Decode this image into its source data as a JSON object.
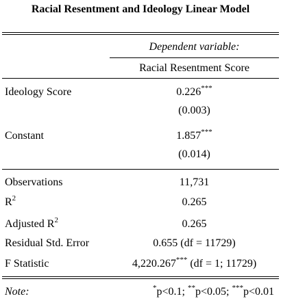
{
  "title": "Racial Resentment and Ideology Linear Model",
  "header": {
    "dependent_variable_label": "Dependent variable:",
    "dependent_variable": "Racial Resentment Score"
  },
  "coefficients": [
    {
      "name": "Ideology Score",
      "estimate": "0.226",
      "stars": "***",
      "se": "(0.003)"
    },
    {
      "name": "Constant",
      "estimate": "1.857",
      "stars": "***",
      "se": "(0.014)"
    }
  ],
  "stats": {
    "observations": {
      "label": "Observations",
      "value": "11,731"
    },
    "r2": {
      "label_base": "R",
      "label_sup": "2",
      "value": "0.265"
    },
    "adj_r2": {
      "label_base": "Adjusted R",
      "label_sup": "2",
      "value": "0.265"
    },
    "rse": {
      "label": "Residual Std. Error",
      "value": "0.655 (df = 11729)"
    },
    "f": {
      "label": "F Statistic",
      "value_main": "4,220.267",
      "stars": "***",
      "value_tail": " (df = 1; 11729)"
    }
  },
  "note": {
    "label": "Note:",
    "items": [
      {
        "stars": "*",
        "text": "p<0.1; "
      },
      {
        "stars": "**",
        "text": "p<0.05; "
      },
      {
        "stars": "***",
        "text": "p<0.01"
      }
    ]
  }
}
